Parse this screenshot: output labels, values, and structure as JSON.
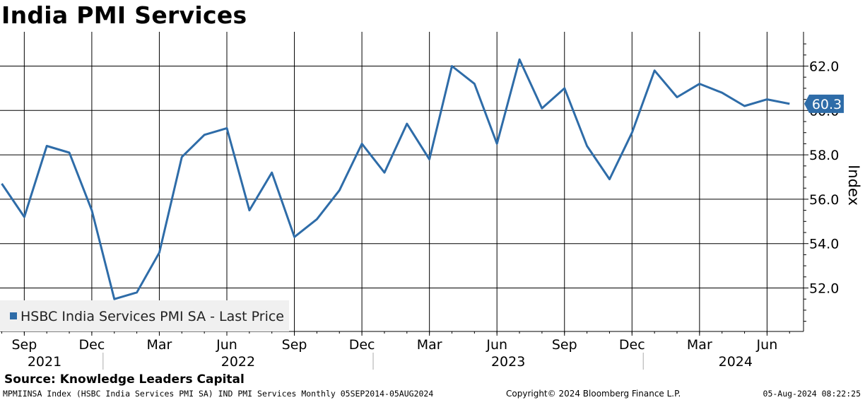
{
  "title": "India PMI Services",
  "source": "Source: Knowledge Leaders Capital",
  "footer": {
    "left": "MPMIINSA Index (HSBC India Services PMI SA) IND PMI Services  Monthly 05SEP2014-05AUG2024",
    "center": "Copyright© 2024 Bloomberg Finance L.P.",
    "right": "05-Aug-2024 08:22:25"
  },
  "chart_data": {
    "type": "line",
    "title": "India PMI Services",
    "ylabel": "Index",
    "xlabel": "",
    "ylim": [
      50.0,
      63.5
    ],
    "y_ticks": [
      52.0,
      54.0,
      56.0,
      58.0,
      60.0,
      62.0
    ],
    "y_tick_labels": [
      "52.0",
      "54.0",
      "56.0",
      "58.0",
      "60.0",
      "62.0"
    ],
    "x_month_ticks": [
      "Sep",
      "Dec",
      "Mar",
      "Jun",
      "Sep",
      "Dec",
      "Mar",
      "Jun",
      "Sep",
      "Dec",
      "Mar",
      "Jun"
    ],
    "x_year_labels": [
      "2021",
      "2022",
      "2023",
      "2024"
    ],
    "grid": true,
    "legend_position": "bottom-left",
    "last_value_label": "60.3",
    "series": [
      {
        "name": "HSBC India Services PMI SA - Last Price",
        "color": "#2e6ca8",
        "x": [
          "2021-08",
          "2021-09",
          "2021-10",
          "2021-11",
          "2021-12",
          "2022-01",
          "2022-02",
          "2022-03",
          "2022-04",
          "2022-05",
          "2022-06",
          "2022-07",
          "2022-08",
          "2022-09",
          "2022-10",
          "2022-11",
          "2022-12",
          "2023-01",
          "2023-02",
          "2023-03",
          "2023-04",
          "2023-05",
          "2023-06",
          "2023-07",
          "2023-08",
          "2023-09",
          "2023-10",
          "2023-11",
          "2023-12",
          "2024-01",
          "2024-02",
          "2024-03",
          "2024-04",
          "2024-05",
          "2024-06",
          "2024-07"
        ],
        "values": [
          56.7,
          55.2,
          58.4,
          58.1,
          55.5,
          51.5,
          51.8,
          53.6,
          57.9,
          58.9,
          59.2,
          55.5,
          57.2,
          54.3,
          55.1,
          56.4,
          58.5,
          57.2,
          59.4,
          57.8,
          62.0,
          61.2,
          58.5,
          62.3,
          60.1,
          61.0,
          58.4,
          56.9,
          59.0,
          61.8,
          60.6,
          61.2,
          60.8,
          60.2,
          60.5,
          60.3
        ]
      }
    ]
  }
}
